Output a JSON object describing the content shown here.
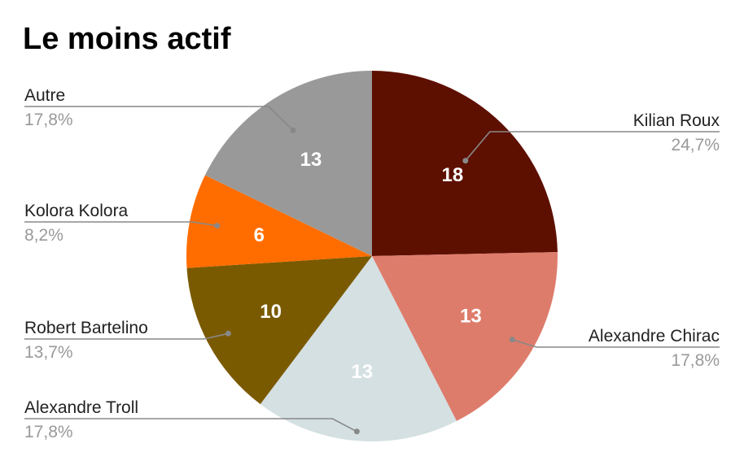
{
  "chart_data": {
    "type": "pie",
    "title": "Le moins actif",
    "slices": [
      {
        "name": "Kilian Roux",
        "value": 18,
        "percent": "24,7%",
        "color": "#5e1000"
      },
      {
        "name": "Alexandre Chirac",
        "value": 13,
        "percent": "17,8%",
        "color": "#de7c6c"
      },
      {
        "name": "Alexandre Troll",
        "value": 13,
        "percent": "17,8%",
        "color": "#d4e0e2"
      },
      {
        "name": "Robert Bartelino",
        "value": 10,
        "percent": "13,7%",
        "color": "#7a5a00"
      },
      {
        "name": "Kolora Kolora",
        "value": 6,
        "percent": "8,2%",
        "color": "#ff6d01"
      },
      {
        "name": "Autre",
        "value": 13,
        "percent": "17,8%",
        "color": "#999999"
      }
    ],
    "legend": "leader-labels"
  }
}
